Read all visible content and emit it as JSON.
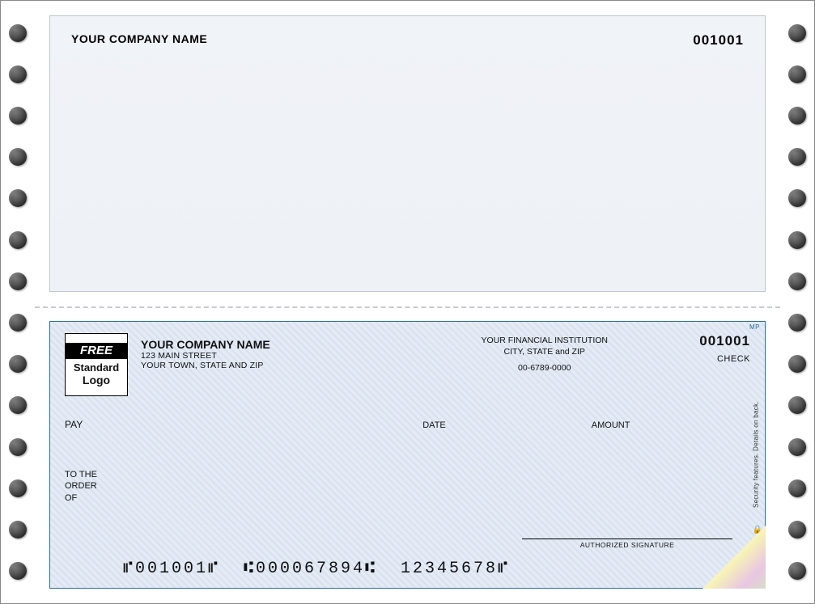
{
  "stub": {
    "company_name": "YOUR COMPANY NAME",
    "number": "001001"
  },
  "check": {
    "logo": {
      "line1": "FREE",
      "line2": "Standard",
      "line3": "Logo"
    },
    "company": {
      "name": "YOUR COMPANY NAME",
      "street": "123 MAIN STREET",
      "city_state_zip": "YOUR TOWN, STATE AND ZIP"
    },
    "bank": {
      "name": "YOUR FINANCIAL INSTITUTION",
      "city_state_zip": "CITY, STATE and ZIP",
      "routing_display": "00-6789-0000"
    },
    "number": "001001",
    "check_label": "CHECK",
    "labels": {
      "pay": "PAY",
      "date": "DATE",
      "amount": "AMOUNT",
      "to_the": "TO THE",
      "order": "ORDER",
      "of": "OF",
      "authorized_signature": "AUTHORIZED SIGNATURE"
    },
    "micr": "⑈001001⑈  ⑆000067894⑆  12345678⑈",
    "security_text": "Security features. Details on back.",
    "mp_mark": "MP",
    "lock_glyph": "🔒"
  },
  "layout": {
    "hole_count": 14,
    "colors": {
      "stub_bg_top": "#f0f3f8",
      "stub_border": "#bfc7d0",
      "check_border": "#2a6f9e",
      "check_pattern_a": "#d8e1ee",
      "check_pattern_b": "#e4ebf5",
      "perforation": "#c8ccd1"
    }
  }
}
